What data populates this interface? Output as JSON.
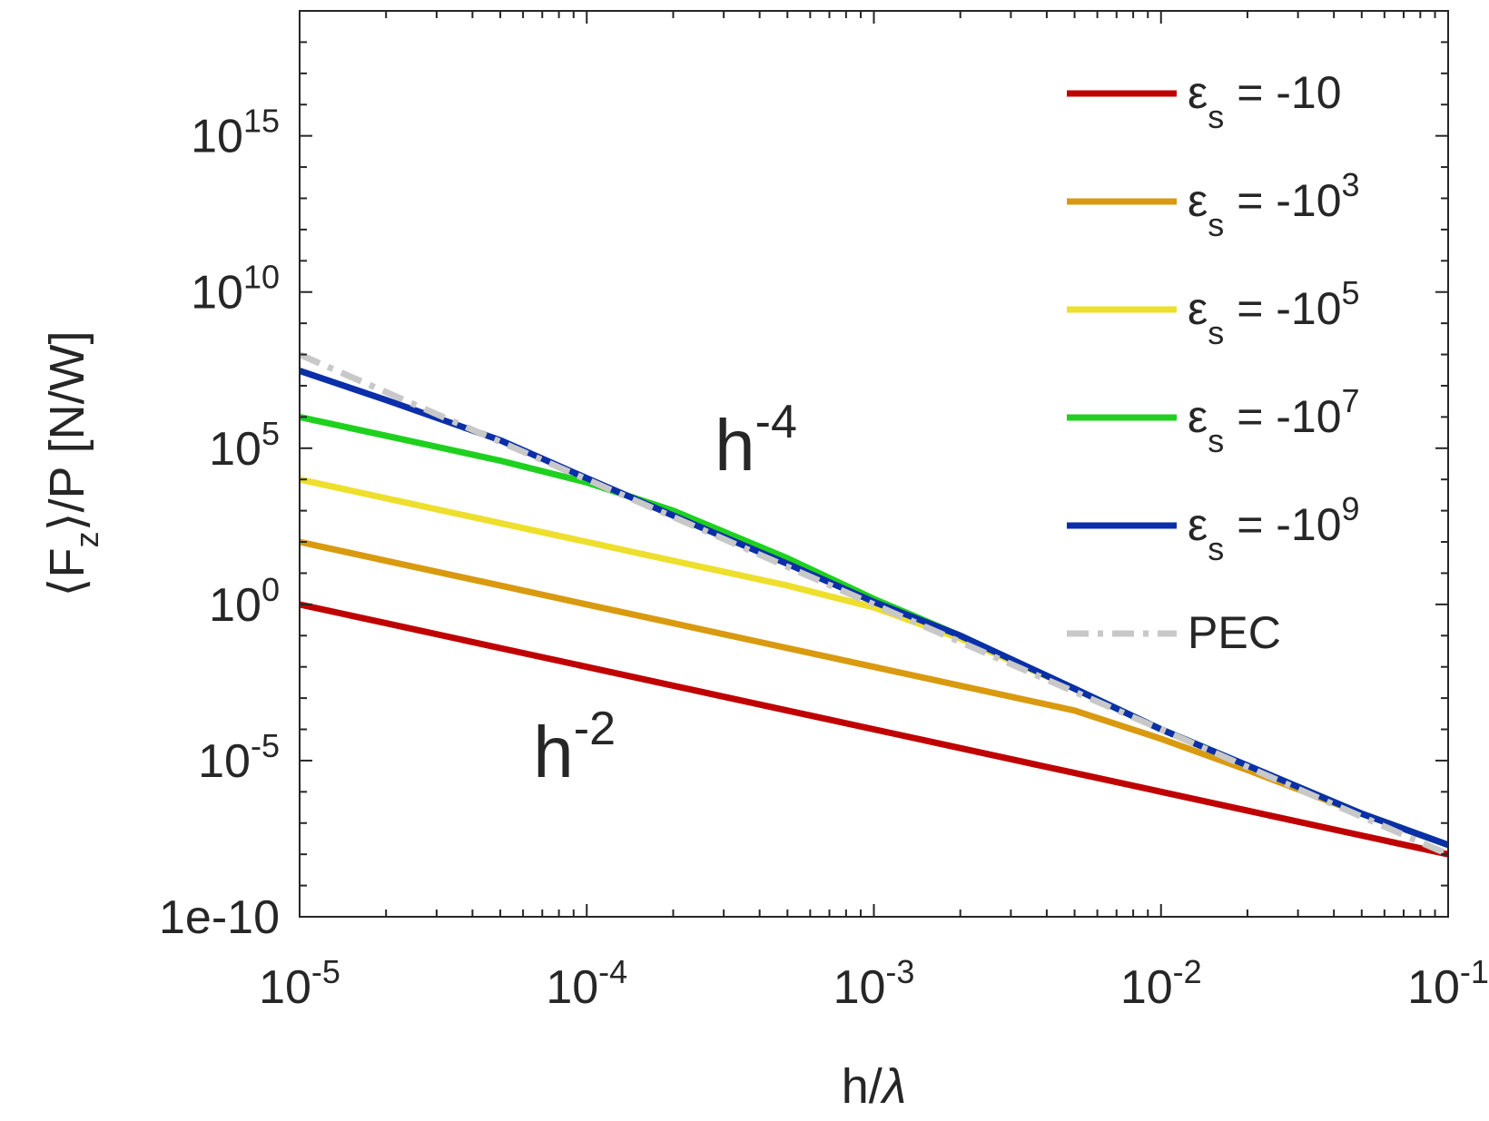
{
  "chart_data": {
    "type": "line",
    "xlabel_parts": [
      "h/",
      "λ"
    ],
    "ylabel_parts": [
      "⟨F",
      "z",
      "⟩/P  [N/W]"
    ],
    "xscale": "log",
    "yscale": "log",
    "xlim": [
      1e-05,
      0.1
    ],
    "ylim": [
      1e-10,
      1e+19
    ],
    "x_ticks": [
      {
        "base": "10",
        "exp": "-5"
      },
      {
        "base": "10",
        "exp": "-4"
      },
      {
        "base": "10",
        "exp": "-3"
      },
      {
        "base": "10",
        "exp": "-2"
      },
      {
        "base": "10",
        "exp": "-1"
      }
    ],
    "y_ticks": [
      {
        "base": "1e-10",
        "exp": ""
      },
      {
        "base": "10",
        "exp": "-5"
      },
      {
        "base": "10",
        "exp": "0"
      },
      {
        "base": "10",
        "exp": "5"
      },
      {
        "base": "10",
        "exp": "10"
      },
      {
        "base": "10",
        "exp": "15"
      }
    ],
    "x": [
      1e-05,
      2e-05,
      5e-05,
      0.0001,
      0.0002,
      0.0005,
      0.001,
      0.002,
      0.005,
      0.01,
      0.02,
      0.05,
      0.1
    ],
    "series": [
      {
        "name": "εs = -10",
        "name_parts": [
          "ε",
          "s",
          " = -10",
          ""
        ],
        "color": "#c00000",
        "style": "solid",
        "values": [
          1,
          0.25,
          0.04,
          0.01,
          0.0025,
          0.0004,
          0.0001,
          2.5e-05,
          4e-06,
          1e-06,
          2.5e-07,
          4e-08,
          1e-08
        ]
      },
      {
        "name": "εs = -10^3",
        "name_parts": [
          "ε",
          "s",
          " = -10",
          "3"
        ],
        "color": "#d99a0f",
        "style": "solid",
        "values": [
          100,
          25,
          4,
          1,
          0.25,
          0.04,
          0.01,
          0.0025,
          0.0004,
          5e-05,
          5e-06,
          2e-07,
          2e-08
        ]
      },
      {
        "name": "εs = -10^5",
        "name_parts": [
          "ε",
          "s",
          " = -10",
          "5"
        ],
        "color": "#eedf2c",
        "style": "solid",
        "values": [
          10000,
          2500,
          400,
          100,
          25,
          4,
          0.8,
          0.08,
          0.002,
          0.0001,
          7e-06,
          2e-07,
          2e-08
        ]
      },
      {
        "name": "εs = -10^7",
        "name_parts": [
          "ε",
          "s",
          " = -10",
          "7"
        ],
        "color": "#1ed11e",
        "style": "solid",
        "values": [
          1000000,
          250000,
          40000,
          8000,
          1000,
          30,
          1.5,
          0.1,
          0.002,
          0.0001,
          7e-06,
          2e-07,
          2e-08
        ]
      },
      {
        "name": "εs = -10^9",
        "name_parts": [
          "ε",
          "s",
          " = -10",
          "9"
        ],
        "color": "#0a2fa8",
        "style": "solid",
        "values": [
          30000000,
          3500000,
          180000,
          11000,
          700,
          20,
          1.2,
          0.1,
          0.002,
          0.0001,
          7e-06,
          2e-07,
          2e-08
        ]
      },
      {
        "name": "PEC",
        "name_parts": [
          "PEC",
          "",
          "",
          ""
        ],
        "color": "#c8c8c8",
        "style": "dashdot",
        "values": [
          100000000,
          6250000,
          160000,
          10000,
          625,
          16,
          1,
          0.0625,
          0.0016,
          0.0001,
          6.25e-06,
          1.6e-07,
          1e-08
        ]
      }
    ],
    "annotations": [
      {
        "id": "h4",
        "base": "h",
        "exp": "-4",
        "x": 0.0003,
        "y": 20000
      },
      {
        "id": "h2",
        "base": "h",
        "exp": "-2",
        "x": 7e-05,
        "y": 3e-06
      }
    ],
    "legend_position": "top-right",
    "grid": false,
    "box": true
  }
}
